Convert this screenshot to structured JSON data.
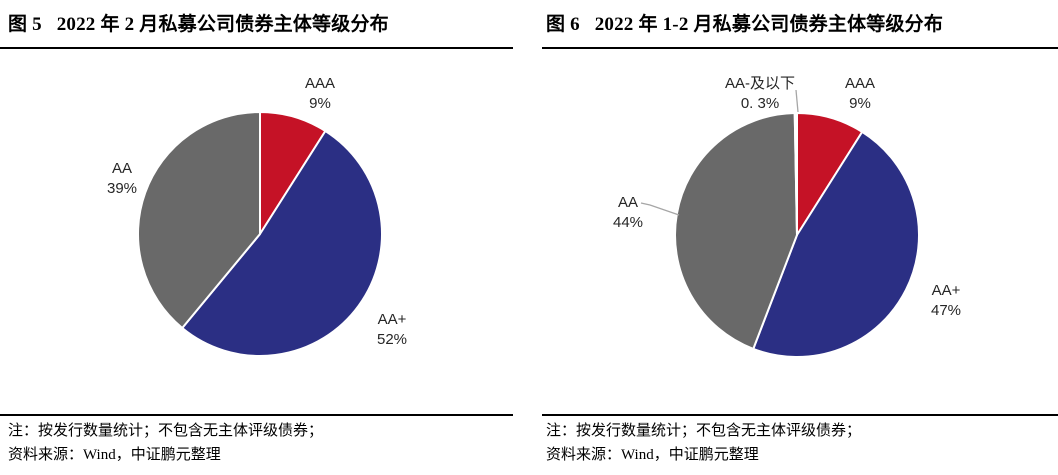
{
  "panels": [
    {
      "title": "图 5   2022 年 2 月私募公司债券主体等级分布",
      "notes": [
        "注：按发行数量统计；不包含无主体评级债券；",
        "资料来源：Wind，中证鹏元整理"
      ]
    },
    {
      "title": "图 6   2022 年 1-2 月私募公司债券主体等级分布",
      "notes": [
        "注：按发行数量统计；不包含无主体评级债券；",
        "资料来源：Wind，中证鹏元整理"
      ]
    }
  ],
  "chart_data": [
    {
      "type": "pie",
      "title": "2022 年 2 月私募公司债券主体等级分布",
      "unit": "percent of issues",
      "start_angle_deg": 0,
      "clockwise": true,
      "slice_border_color": "#ffffff",
      "slices": [
        {
          "label": "AAA",
          "value": 9,
          "pct_label": "9%",
          "color": "#c51226"
        },
        {
          "label": "AA+",
          "value": 52,
          "pct_label": "52%",
          "color": "#2b2f84"
        },
        {
          "label": "AA",
          "value": 39,
          "pct_label": "39%",
          "color": "#696969"
        }
      ]
    },
    {
      "type": "pie",
      "title": "2022 年 1-2 月私募公司债券主体等级分布",
      "unit": "percent of issues",
      "start_angle_deg": 0,
      "clockwise": true,
      "slice_border_color": "#ffffff",
      "slices": [
        {
          "label": "AAA",
          "value": 9,
          "pct_label": "9%",
          "color": "#c51226"
        },
        {
          "label": "AA+",
          "value": 47,
          "pct_label": "47%",
          "color": "#2b2f84"
        },
        {
          "label": "AA",
          "value": 44,
          "pct_label": "44%",
          "color": "#696969"
        },
        {
          "label": "AA-及以下",
          "value": 0.3,
          "pct_label": "0. 3%",
          "color": "#ffffff"
        }
      ]
    }
  ],
  "colors": {
    "rule": "#000000",
    "leader_line": "#a6a6a6",
    "label_text": "#262626"
  }
}
